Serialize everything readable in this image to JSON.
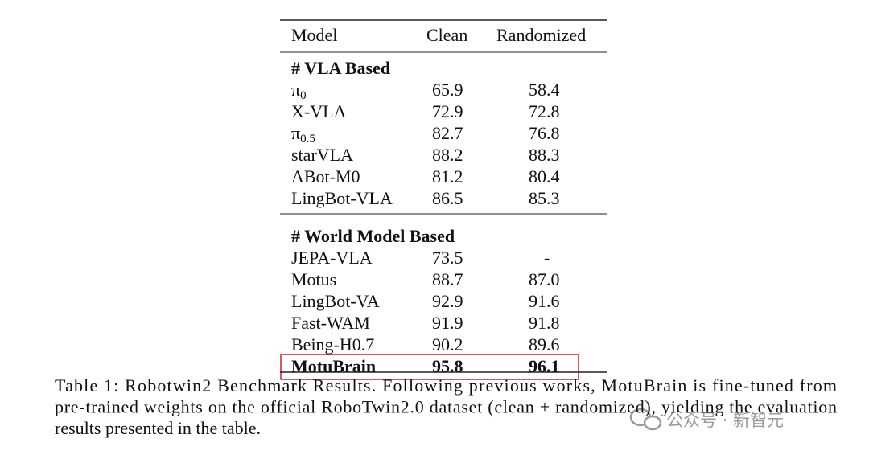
{
  "table": {
    "header": [
      "Model",
      "Clean",
      "Randomized"
    ],
    "sections": [
      {
        "title": "# VLA Based",
        "rows": [
          {
            "model": "π",
            "subscript": "0",
            "clean": "65.9",
            "randomized": "58.4"
          },
          {
            "model": "X-VLA",
            "clean": "72.9",
            "randomized": "72.8"
          },
          {
            "model": "π",
            "subscript": "0.5",
            "clean": "82.7",
            "randomized": "76.8"
          },
          {
            "model": "starVLA",
            "clean": "88.2",
            "randomized": "88.3"
          },
          {
            "model": "ABot-M0",
            "clean": "81.2",
            "randomized": "80.4"
          },
          {
            "model": "LingBot-VLA",
            "clean": "86.5",
            "randomized": "85.3"
          }
        ]
      },
      {
        "title": "# World Model Based",
        "rows": [
          {
            "model": "JEPA-VLA",
            "clean": "73.5",
            "randomized": "-"
          },
          {
            "model": "Motus",
            "clean": "88.7",
            "randomized": "87.0"
          },
          {
            "model": "LingBot-VA",
            "clean": "92.9",
            "randomized": "91.6"
          },
          {
            "model": "Fast-WAM",
            "clean": "91.9",
            "randomized": "91.8"
          },
          {
            "model": "Being-H0.7",
            "clean": "90.2",
            "randomized": "89.6"
          },
          {
            "model": "MotuBrain",
            "clean": "95.8",
            "randomized": "96.1",
            "highlight": true
          }
        ]
      }
    ]
  },
  "caption": [
    "Table 1: Robotwin2 Benchmark Results. Following previous works, MotuBrain is fine-tuned from",
    "pre-trained weights on the official RoboTwin2.0 dataset (clean + randomized), yielding the evaluation",
    "results presented in the table."
  ],
  "watermark": "公众号 · 新智元"
}
